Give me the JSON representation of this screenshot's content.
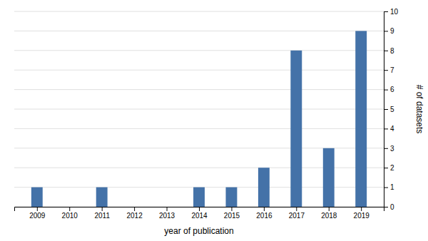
{
  "chart_data": {
    "type": "bar",
    "x": [
      2009,
      2010,
      2011,
      2012,
      2013,
      2014,
      2015,
      2016,
      2017,
      2018,
      2019
    ],
    "values": [
      1,
      0,
      1,
      0,
      0,
      1,
      1,
      2,
      8,
      3,
      9
    ],
    "color": "#4472a8",
    "xlabel": "year of publication",
    "ylabel": "# of datasets",
    "xlim": [
      2008.3,
      2019.7
    ],
    "xticks": [
      2009,
      2010,
      2011,
      2012,
      2013,
      2014,
      2015,
      2016,
      2017,
      2018,
      2019
    ],
    "ylim": [
      0,
      10
    ],
    "yticks": [
      0,
      1,
      2,
      3,
      4,
      5,
      6,
      7,
      8,
      9,
      10
    ],
    "grid": true
  }
}
